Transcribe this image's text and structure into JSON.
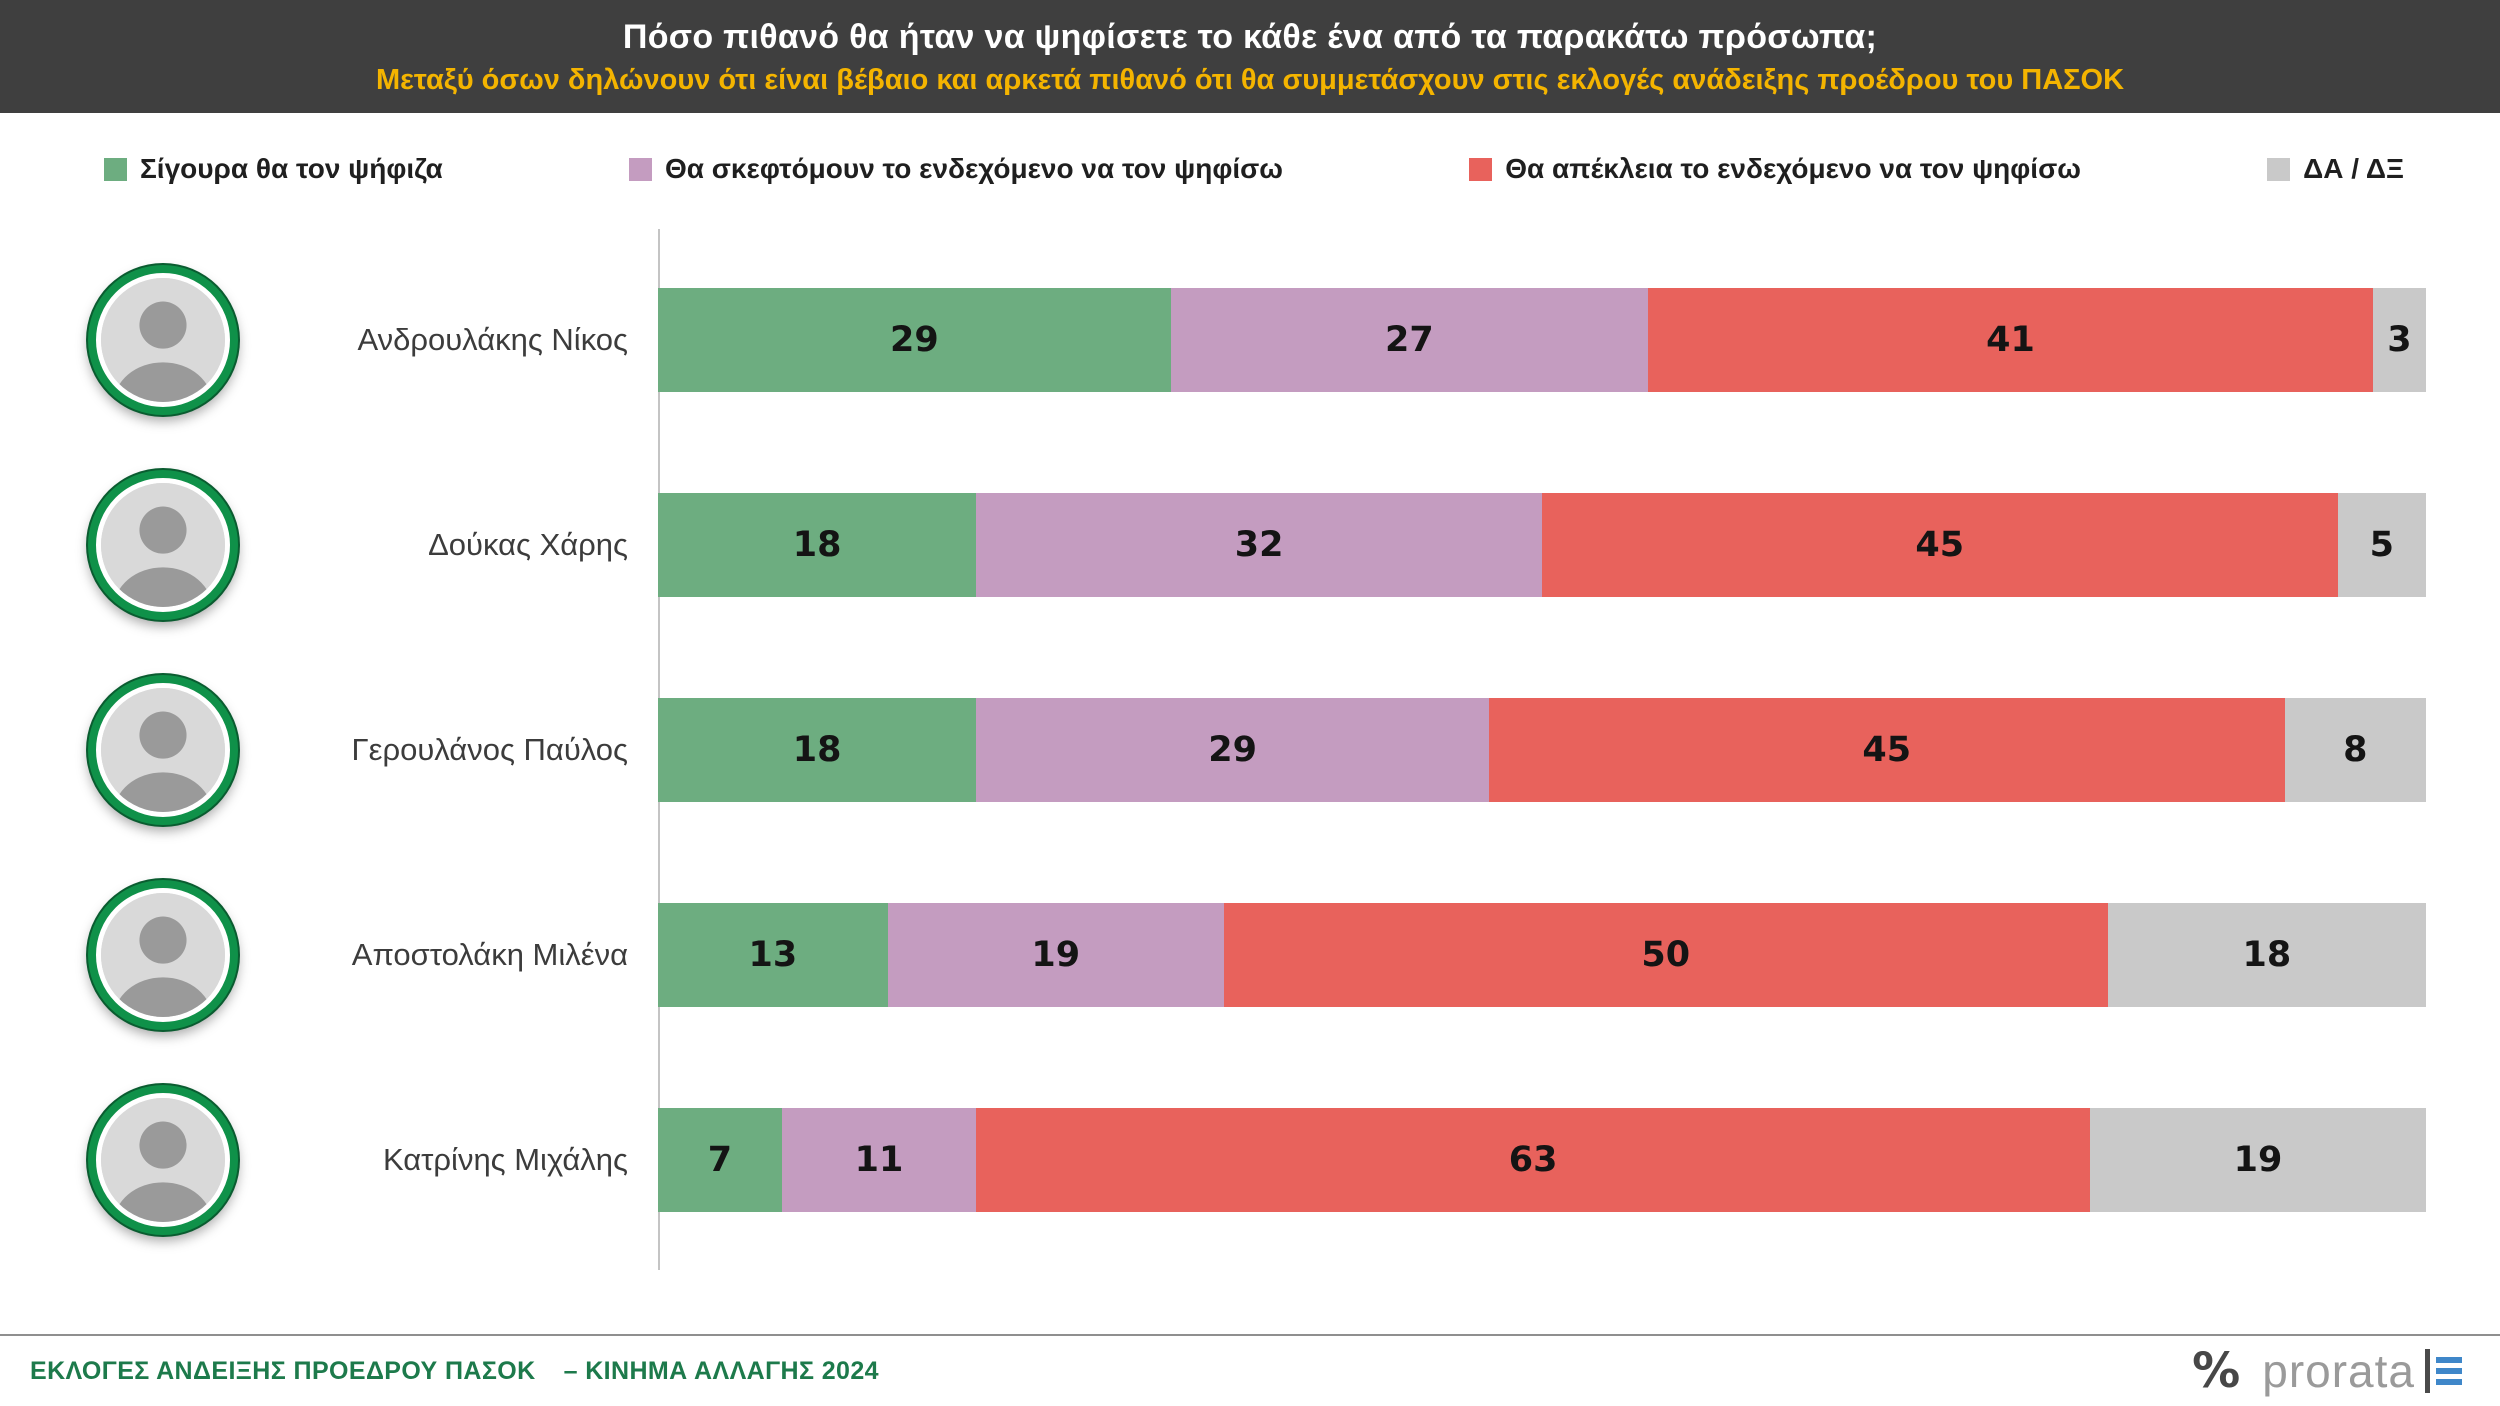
{
  "header": {
    "title": "Πόσο πιθανό θα ήταν να ψηφίσετε το κάθε ένα από τα παρακάτω πρόσωπα;",
    "subtitle": "Μεταξύ όσων δηλώνουν ότι είναι βέβαιο και αρκετά πιθανό ότι θα συμμετάσχουν στις εκλογές ανάδειξης προέδρου του ΠΑΣΟΚ"
  },
  "chart_data": {
    "type": "bar",
    "orientation": "horizontal_stacked",
    "unit": "percent",
    "xlim": [
      0,
      100
    ],
    "legend_position": "top",
    "categories": [
      "Ανδρουλάκης Νίκος",
      "Δούκας Χάρης",
      "Γερουλάνος Παύλος",
      "Αποστολάκη Μιλένα",
      "Κατρίνης Μιχάλης"
    ],
    "series": [
      {
        "name": "Σίγουρα θα τον ψήφιζα",
        "color": "#6dad80",
        "values": [
          29,
          18,
          18,
          13,
          7
        ]
      },
      {
        "name": "Θα σκεφτόμουν το ενδεχόμενο να τον ψηφίσω",
        "color": "#c49cc0",
        "values": [
          27,
          32,
          29,
          19,
          11
        ]
      },
      {
        "name": "Θα απέκλεια το ενδεχόμενο να τον ψηφίσω",
        "color": "#e8625c",
        "values": [
          41,
          45,
          45,
          50,
          63
        ]
      },
      {
        "name": "ΔΑ / ΔΞ",
        "color": "#c9c9c9",
        "values": [
          3,
          5,
          8,
          18,
          19
        ]
      }
    ]
  },
  "footer": {
    "source_left": "ΕΚΛΟΓΕΣ ΑΝΔΕΙΞΗΣ ΠΡΟΕΔΡΟΥ ΠΑΣΟΚ",
    "source_right": "– ΚΙΝΗΜΑ ΑΛΛΑΓΗΣ 2024",
    "percent_icon": "%",
    "brand": "prorata"
  }
}
